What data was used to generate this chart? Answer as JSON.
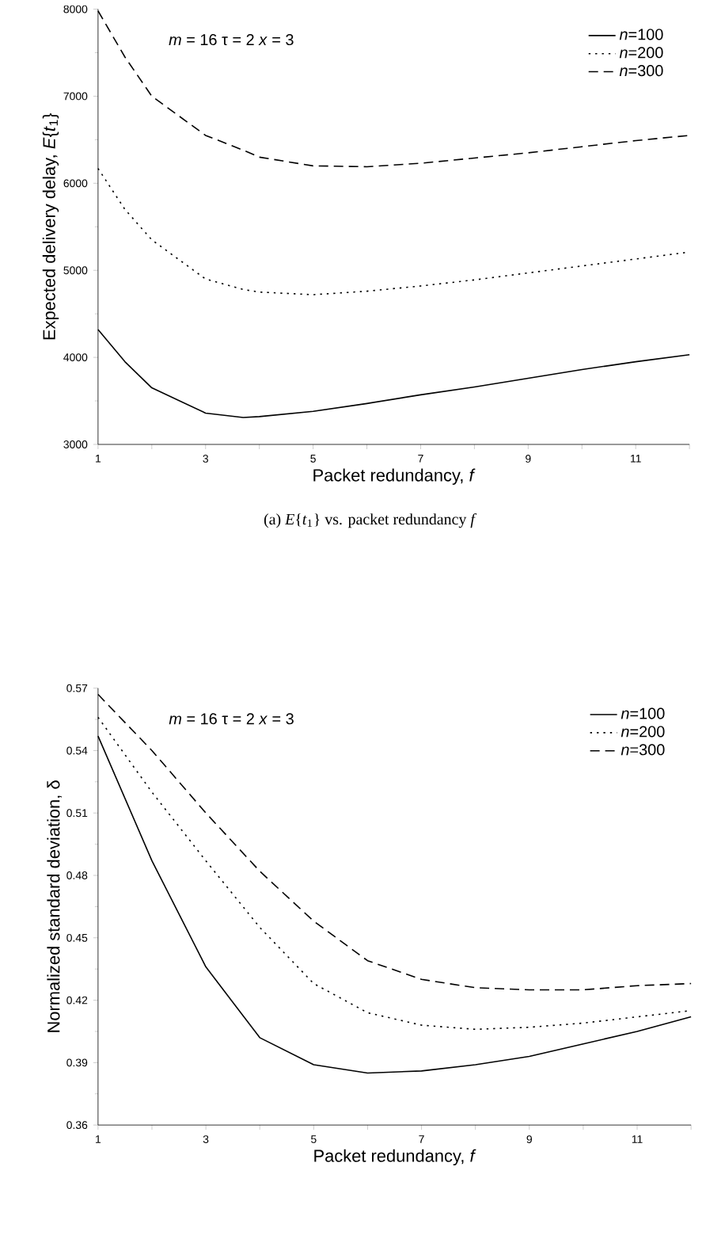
{
  "chart_data": [
    {
      "type": "line",
      "xlabel": "Packet redundancy, *f*",
      "ylabel": "Expected delivery delay, *E*{*t*$_{1}$}",
      "annotations": [
        "*m* = 16  τ = 2  *x* = 3",
        "(a) *E*{*t*$_{1}$} vs. packet redundancy *f*"
      ],
      "x": [
        1,
        1.5,
        2,
        3,
        3.7,
        4,
        5,
        6,
        7,
        8,
        9,
        10,
        11,
        12
      ],
      "series": [
        {
          "name": "*n*=100",
          "color": "#000000",
          "line_style": "solid",
          "values": [
            4320,
            3950,
            3650,
            3360,
            3310,
            3320,
            3380,
            3470,
            3570,
            3660,
            3760,
            3860,
            3950,
            4030
          ]
        },
        {
          "name": "*n*=200",
          "color": "#000000",
          "line_style": "dotted",
          "values": [
            6170,
            5700,
            5350,
            4900,
            4780,
            4750,
            4720,
            4760,
            4820,
            4890,
            4970,
            5050,
            5130,
            5210
          ]
        },
        {
          "name": "*n*=300",
          "color": "#000000",
          "line_style": "dashed",
          "values": [
            7980,
            7450,
            7000,
            6550,
            6380,
            6300,
            6200,
            6190,
            6230,
            6290,
            6350,
            6420,
            6490,
            6550
          ]
        }
      ],
      "xlim": [
        1,
        12
      ],
      "ylim": [
        3000,
        8000
      ],
      "xticks": [
        1,
        {
          "value": 2,
          "label": null
        },
        3,
        {
          "value": 4,
          "label": null
        },
        5,
        {
          "value": 6,
          "label": null
        },
        7,
        {
          "value": 8,
          "label": null
        },
        9,
        {
          "value": 10,
          "label": null
        },
        11,
        {
          "value": 12,
          "label": null
        }
      ],
      "yticks": [
        3000,
        4000,
        5000,
        6000,
        7000,
        8000
      ],
      "legend": "top right",
      "grid": false
    },
    {
      "type": "line",
      "xlabel": "Packet redundancy, *f*",
      "ylabel": "Normalized standard deviation, δ",
      "annotations": [
        "*m* = 16  τ = 2  *x* = 3"
      ],
      "x": [
        1,
        2,
        3,
        4,
        5,
        6,
        7,
        8,
        9,
        10,
        11,
        12
      ],
      "series": [
        {
          "name": "*n*=100",
          "color": "#000000",
          "line_style": "solid",
          "values": [
            0.547,
            0.487,
            0.436,
            0.402,
            0.389,
            0.385,
            0.386,
            0.389,
            0.393,
            0.399,
            0.405,
            0.412
          ]
        },
        {
          "name": "*n*=200",
          "color": "#000000",
          "line_style": "dotted",
          "values": [
            0.556,
            0.52,
            0.487,
            0.455,
            0.428,
            0.414,
            0.408,
            0.406,
            0.407,
            0.409,
            0.412,
            0.415
          ]
        },
        {
          "name": "*n*=300",
          "color": "#000000",
          "line_style": "dashed",
          "values": [
            0.567,
            0.54,
            0.51,
            0.482,
            0.458,
            0.439,
            0.43,
            0.426,
            0.425,
            0.425,
            0.427,
            0.428
          ]
        }
      ],
      "xlim": [
        1,
        12
      ],
      "ylim": [
        0.36,
        0.57
      ],
      "xticks": [
        1,
        {
          "value": 2,
          "label": null
        },
        3,
        {
          "value": 4,
          "label": null
        },
        5,
        {
          "value": 6,
          "label": null
        },
        7,
        {
          "value": 8,
          "label": null
        },
        9,
        {
          "value": 10,
          "label": null
        },
        11,
        {
          "value": 12,
          "label": null
        }
      ],
      "yticks": [
        0.36,
        0.39,
        0.42,
        0.45,
        0.48,
        0.51,
        0.54,
        0.57
      ],
      "legend": "top right",
      "grid": false
    }
  ]
}
